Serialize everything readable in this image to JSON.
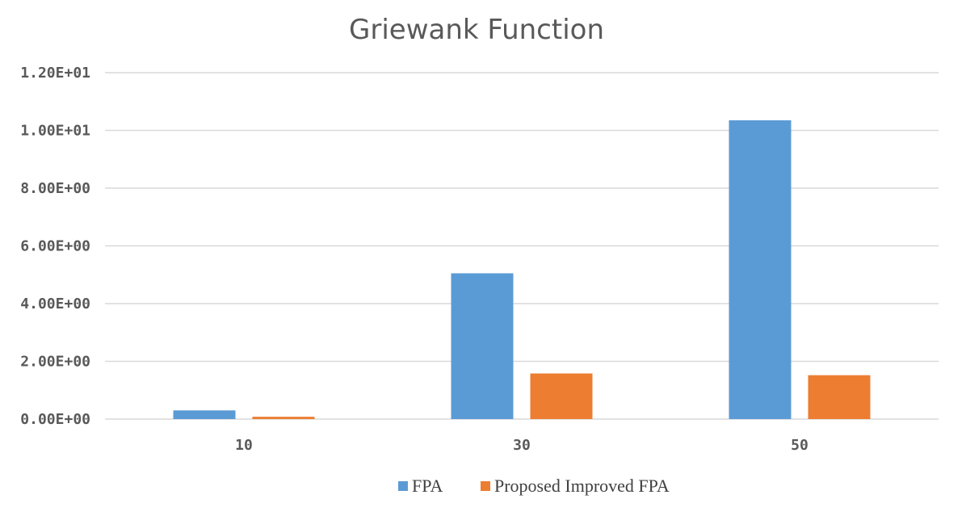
{
  "chart_data": {
    "type": "bar",
    "title": "Griewank Function",
    "xlabel": "",
    "ylabel": "",
    "categories": [
      "10",
      "30",
      "50"
    ],
    "series": [
      {
        "name": "FPA",
        "color": "#5b9bd5",
        "values": [
          0.3,
          5.05,
          10.35
        ]
      },
      {
        "name": "Proposed Improved FPA",
        "color": "#ed7d31",
        "values": [
          0.08,
          1.58,
          1.52
        ]
      }
    ],
    "ylim": [
      0,
      12
    ],
    "y_ticks": [
      0,
      2,
      4,
      6,
      8,
      10,
      12
    ],
    "y_tick_labels": [
      "0.00E+00",
      "2.00E+00",
      "4.00E+00",
      "6.00E+00",
      "8.00E+00",
      "1.00E+01",
      "1.20E+01"
    ],
    "grid": true,
    "legend_position": "bottom"
  }
}
